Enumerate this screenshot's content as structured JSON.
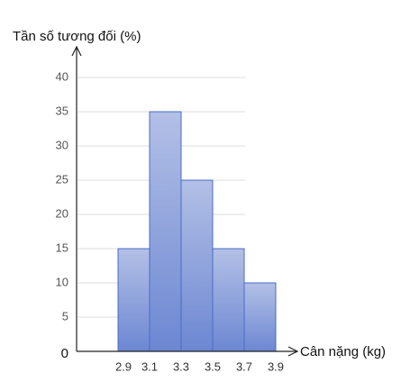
{
  "chart_data": {
    "type": "histogram",
    "y_label": "Tần số tương đối (%)",
    "x_label": "Cân nặng (kg)",
    "bins": [
      2.9,
      3.1,
      3.3,
      3.5,
      3.7,
      3.9
    ],
    "values": [
      15,
      35,
      25,
      15,
      10
    ],
    "color": "#8ea3dc",
    "ylim": [
      0,
      40
    ],
    "yticks": [
      0,
      5,
      10,
      15,
      20,
      25,
      30,
      35,
      40
    ],
    "grid": true
  }
}
